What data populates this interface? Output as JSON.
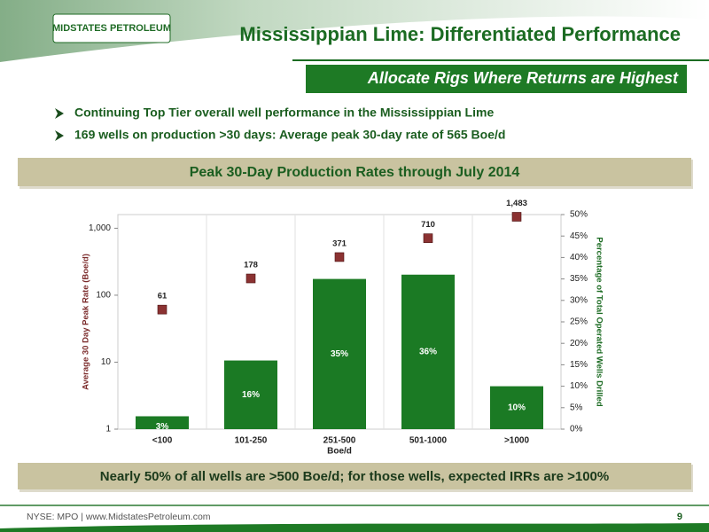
{
  "header": {
    "logo": "MIDSTATES PETROLEUM",
    "title": "Mississippian Lime: Differentiated Performance",
    "subtitle": "Allocate Rigs Where Returns are Highest"
  },
  "bullets": [
    "Continuing Top Tier overall well performance in the Mississippian Lime",
    "169 wells on production >30 days: Average peak 30-day rate of 565 Boe/d"
  ],
  "chart_data": {
    "type": "bar",
    "title": "Peak 30-Day Production Rates through July 2014",
    "x_label": "Boe/d",
    "y_label": "Average 30 Day Peak Rate (Boe/d)",
    "y2_label": "Percentage of Total Operated Wells Drilled",
    "categories": [
      "<100",
      "101-250",
      "251-500",
      "501-1000",
      ">1000"
    ],
    "y_scale": "log",
    "ylim": [
      1,
      1600
    ],
    "yticks": [
      1,
      10,
      100,
      {
        "value": 1000,
        "label": "1,000"
      }
    ],
    "y2lim": [
      0,
      50
    ],
    "y2ticks": [
      {
        "value": 0,
        "label": "0%"
      },
      {
        "value": 5,
        "label": "5%"
      },
      {
        "value": 10,
        "label": "10%"
      },
      {
        "value": 15,
        "label": "15%"
      },
      {
        "value": 20,
        "label": "20%"
      },
      {
        "value": 25,
        "label": "25%"
      },
      {
        "value": 30,
        "label": "30%"
      },
      {
        "value": 35,
        "label": "35%"
      },
      {
        "value": 40,
        "label": "40%"
      },
      {
        "value": 45,
        "label": "45%"
      },
      {
        "value": 50,
        "label": "50%"
      }
    ],
    "series": [
      {
        "type": "bar",
        "axis": "y2",
        "color": "#1b7a24",
        "values": [
          3,
          16,
          35,
          36,
          10
        ],
        "value_labels": [
          "3%",
          "16%",
          "35%",
          "36%",
          "10%"
        ]
      },
      {
        "type": "scatter",
        "axis": "y",
        "color": "#8b3232",
        "values": [
          61,
          178,
          371,
          710,
          1483
        ],
        "value_labels": [
          "61",
          "178",
          "371",
          "710",
          "1,483"
        ]
      }
    ]
  },
  "conclusion": "Nearly 50% of all wells are >500 Boe/d; for those wells, expected IRRs are >100%",
  "footer": {
    "text": "NYSE: MPO | www.MidstatesPetroleum.com",
    "page": "9"
  }
}
